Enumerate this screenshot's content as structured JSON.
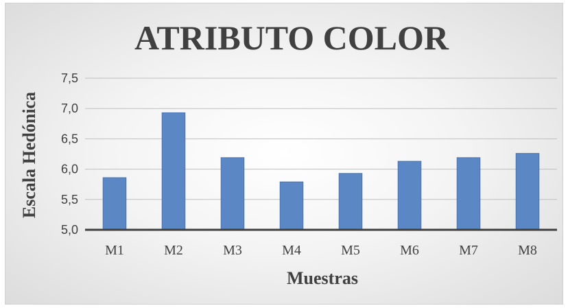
{
  "chart_data": {
    "type": "bar",
    "title": "ATRIBUTO COLOR",
    "xlabel": "Muestras",
    "ylabel": "Escala Hedónica",
    "categories": [
      "M1",
      "M2",
      "M3",
      "M4",
      "M5",
      "M6",
      "M7",
      "M8"
    ],
    "values": [
      5.86,
      6.93,
      6.19,
      5.79,
      5.93,
      6.13,
      6.19,
      6.26
    ],
    "ylim": [
      5.0,
      7.5
    ],
    "yticks": [
      "5,0",
      "5,5",
      "6,0",
      "6,5",
      "7,0",
      "7,5"
    ],
    "grid": true,
    "legend": "none",
    "colors": {
      "bar": "#5b87c5",
      "bar_edge": "#4a74b0",
      "grid": "#bfbfbf",
      "axis": "#404040"
    }
  }
}
